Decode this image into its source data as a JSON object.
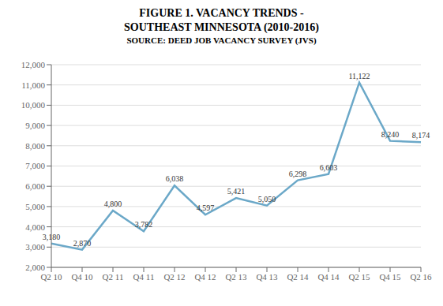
{
  "chart_data": {
    "type": "line",
    "title": "FIGURE 1. VACANCY TRENDS -\nSOUTHEAST MINNESOTA (2010-2016)",
    "subtitle": "SOURCE: DEED JOB VACANCY SURVEY (JVS)",
    "categories": [
      "Q2 10",
      "Q4 10",
      "Q2 11",
      "Q4 11",
      "Q2 12",
      "Q4 12",
      "Q2 13",
      "Q4 13",
      "Q2 14",
      "Q4 14",
      "Q2 15",
      "Q4 15",
      "Q2 16"
    ],
    "values": [
      3180,
      2870,
      4800,
      3782,
      6038,
      4597,
      5421,
      5050,
      6298,
      6603,
      11122,
      8240,
      8174
    ],
    "value_labels": [
      "3,180",
      "2,870",
      "4,800",
      "3,782",
      "6,038",
      "4,597",
      "5,421",
      "5,050",
      "6,298",
      "6,603",
      "11,122",
      "8,240",
      "8,174"
    ],
    "data_labels": true,
    "color": "#6BA8C8",
    "ylim": [
      2000,
      12000
    ],
    "yticks": [
      {
        "value": 2000,
        "label": "2,000"
      },
      {
        "value": 3000,
        "label": "3,000"
      },
      {
        "value": 4000,
        "label": "4,000"
      },
      {
        "value": 5000,
        "label": "5,000"
      },
      {
        "value": 6000,
        "label": "6,000"
      },
      {
        "value": 7000,
        "label": "7,000"
      },
      {
        "value": 8000,
        "label": "8,000"
      },
      {
        "value": 9000,
        "label": "9,000"
      },
      {
        "value": 10000,
        "label": "10,000"
      },
      {
        "value": 11000,
        "label": "11,000"
      },
      {
        "value": 12000,
        "label": "12,000"
      }
    ],
    "grid": true
  }
}
